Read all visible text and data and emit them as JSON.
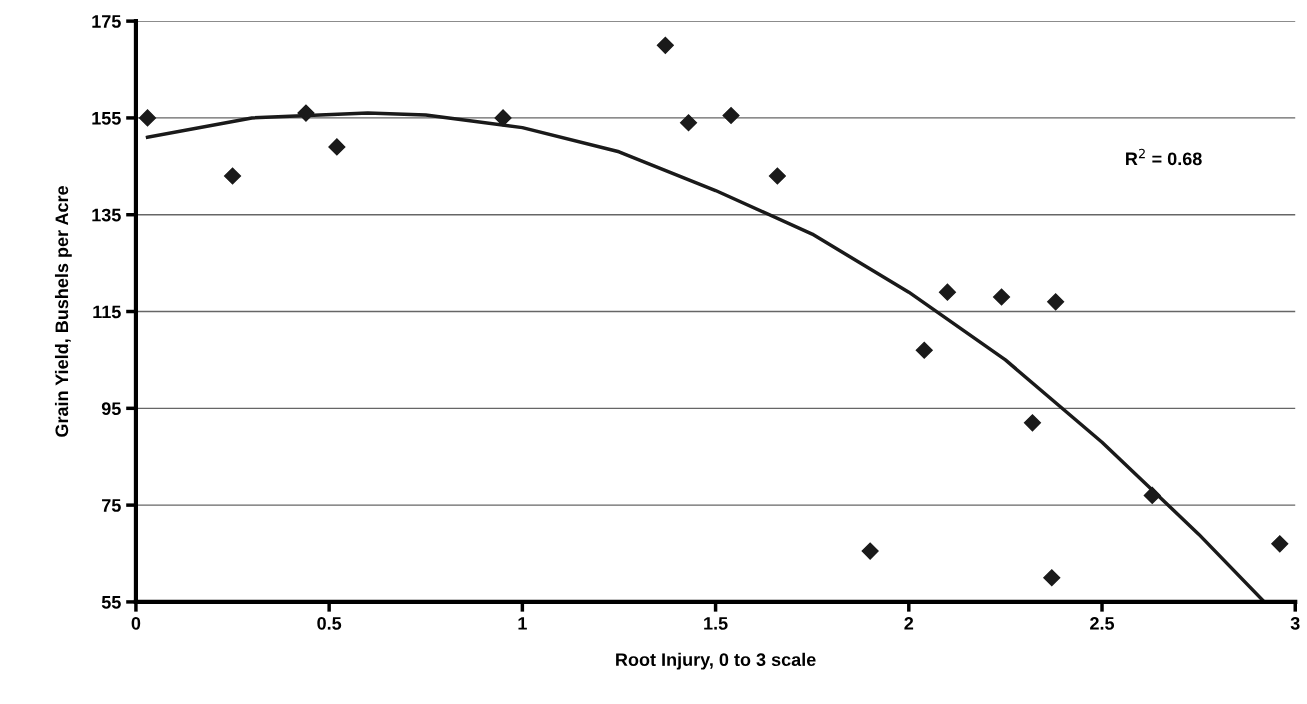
{
  "chart_data": {
    "type": "scatter",
    "xlabel": "Root Injury, 0 to 3 scale",
    "ylabel": "Grain Yield, Bushels per Acre",
    "xlim": [
      0,
      3
    ],
    "xticks": [
      0,
      0.5,
      1,
      1.5,
      2,
      2.5,
      3
    ],
    "ylim": [
      55,
      175
    ],
    "yticks": [
      55,
      75,
      95,
      115,
      135,
      155,
      175
    ],
    "grid": "y",
    "marker": "diamond",
    "legend": false,
    "annotations": [
      "R$^{2}$ = 0.68"
    ],
    "series": [
      {
        "color": "#1a1a1a",
        "x": [
          0.03,
          0.25,
          0.44,
          0.52,
          0.95,
          1.37,
          1.43,
          1.54,
          1.66,
          1.9,
          2.04,
          2.1,
          2.24,
          2.32,
          2.37,
          2.38,
          2.63,
          2.96
        ],
        "values": [
          155,
          143,
          156,
          149,
          155,
          170,
          154,
          155.5,
          143,
          65.5,
          107,
          119,
          118,
          92,
          60,
          117,
          77,
          67
        ]
      },
      {
        "type": "line",
        "color": "#1a1a1a",
        "marker": "none",
        "x": [
          0.03,
          0.3,
          0.6,
          0.75,
          1.0,
          1.25,
          1.5,
          1.75,
          2.0,
          2.25,
          2.5,
          2.75,
          2.92
        ],
        "values": [
          151,
          155,
          156,
          155.6,
          153,
          148,
          140,
          131,
          119,
          105,
          88,
          69,
          55
        ]
      }
    ]
  }
}
